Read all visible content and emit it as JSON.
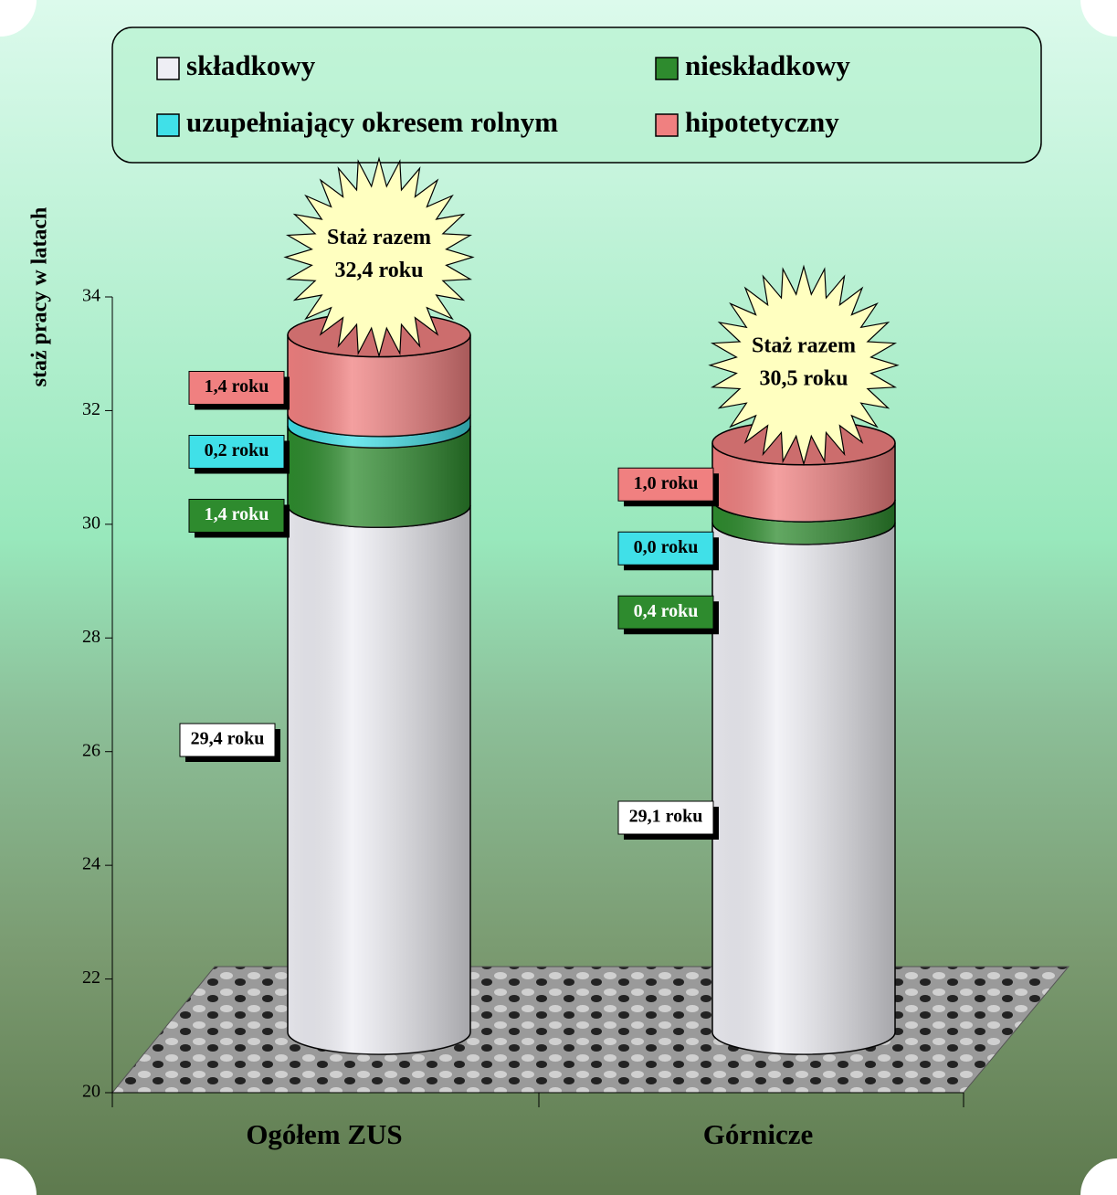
{
  "chart_data": {
    "type": "bar3d",
    "y_label": "staż pracy w latach",
    "categories": [
      "Ogółem ZUS",
      "Górnicze"
    ],
    "series": [
      {
        "name": "składkowy",
        "color": "#eeeef4",
        "values": [
          29.4,
          29.1
        ],
        "value_labels": [
          "29,4 roku",
          "29,1 roku"
        ]
      },
      {
        "name": "nieskładkowy",
        "color": "#2e8b2e",
        "values": [
          1.4,
          0.4
        ],
        "value_labels": [
          "1,4 roku",
          "0,4 roku"
        ]
      },
      {
        "name": "uzupełniający okresem rolnym",
        "color": "#40e0e8",
        "values": [
          0.2,
          0.0
        ],
        "value_labels": [
          "0,2 roku",
          "0,0 roku"
        ]
      },
      {
        "name": "hipotetyczny",
        "color": "#f08080",
        "values": [
          1.4,
          1.0
        ],
        "value_labels": [
          "1,4 roku",
          "1,0 roku"
        ]
      }
    ],
    "totals": {
      "caption": "Staż razem",
      "values": [
        32.4,
        30.5
      ],
      "value_labels": [
        "32,4 roku",
        "30,5 roku"
      ]
    },
    "ylim": [
      20,
      34
    ],
    "yticks": [
      20,
      22,
      24,
      26,
      28,
      30,
      32,
      34
    ]
  }
}
